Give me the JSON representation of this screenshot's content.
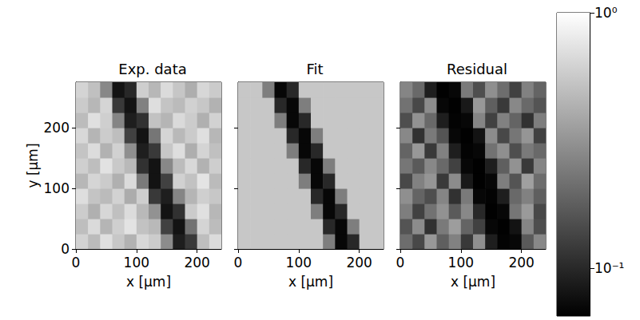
{
  "chart_data": [
    {
      "type": "heatmap",
      "title": "Exp. data",
      "x_label": "x [µm]",
      "y_label": "y [µm]",
      "xlim": [
        0,
        240
      ],
      "ylim": [
        0,
        275
      ],
      "xticks": [
        0,
        100,
        200
      ],
      "yticks": [
        0,
        100,
        200
      ],
      "x": [
        10,
        30,
        50,
        70,
        90,
        110,
        130,
        150,
        170,
        190,
        210,
        230
      ],
      "y": [
        12.5,
        37.5,
        62.5,
        87.5,
        112.5,
        137.5,
        162.5,
        187.5,
        212.5,
        237.5,
        262.5
      ],
      "cells": [
        [
          0.62,
          0.48,
          0.71,
          0.55,
          0.44,
          0.66,
          0.58,
          0.29,
          0.09,
          0.12,
          0.5,
          0.68
        ],
        [
          0.5,
          0.67,
          0.45,
          0.6,
          0.74,
          0.52,
          0.47,
          0.13,
          0.08,
          0.22,
          0.63,
          0.49
        ],
        [
          0.58,
          0.43,
          0.65,
          0.51,
          0.69,
          0.47,
          0.31,
          0.08,
          0.11,
          0.57,
          0.72,
          0.46
        ],
        [
          0.7,
          0.53,
          0.48,
          0.62,
          0.41,
          0.59,
          0.12,
          0.09,
          0.27,
          0.45,
          0.6,
          0.55
        ],
        [
          0.46,
          0.64,
          0.57,
          0.43,
          0.68,
          0.24,
          0.08,
          0.13,
          0.61,
          0.52,
          0.75,
          0.48
        ],
        [
          0.6,
          0.5,
          0.73,
          0.56,
          0.47,
          0.11,
          0.08,
          0.28,
          0.49,
          0.66,
          0.44,
          0.59
        ],
        [
          0.53,
          0.69,
          0.44,
          0.61,
          0.3,
          0.09,
          0.12,
          0.55,
          0.7,
          0.42,
          0.63,
          0.51
        ],
        [
          0.66,
          0.45,
          0.58,
          0.5,
          0.13,
          0.08,
          0.23,
          0.64,
          0.47,
          0.57,
          0.71,
          0.46
        ],
        [
          0.49,
          0.72,
          0.6,
          0.27,
          0.09,
          0.11,
          0.52,
          0.45,
          0.67,
          0.58,
          0.43,
          0.62
        ],
        [
          0.57,
          0.46,
          0.64,
          0.12,
          0.08,
          0.26,
          0.7,
          0.53,
          0.48,
          0.61,
          0.55,
          0.44
        ],
        [
          0.63,
          0.51,
          0.28,
          0.08,
          0.1,
          0.59,
          0.46,
          0.68,
          0.54,
          0.42,
          0.65,
          0.57
        ]
      ]
    },
    {
      "type": "heatmap",
      "title": "Fit",
      "x_label": "x [µm]",
      "tick_labels": "x",
      "xlim": [
        0,
        240
      ],
      "ylim": [
        0,
        275
      ],
      "xticks": [
        0,
        100,
        200
      ],
      "yticks": [
        0,
        100,
        200
      ],
      "x": [
        10,
        30,
        50,
        70,
        90,
        110,
        130,
        150,
        170,
        190,
        210,
        230
      ],
      "y": [
        12.5,
        37.5,
        62.5,
        87.5,
        112.5,
        137.5,
        162.5,
        187.5,
        212.5,
        237.5,
        262.5
      ],
      "cells": [
        [
          0.55,
          0.55,
          0.55,
          0.55,
          0.55,
          0.55,
          0.55,
          0.25,
          0.07,
          0.1,
          0.55,
          0.55
        ],
        [
          0.55,
          0.55,
          0.55,
          0.55,
          0.55,
          0.55,
          0.55,
          0.1,
          0.07,
          0.25,
          0.55,
          0.55
        ],
        [
          0.55,
          0.55,
          0.55,
          0.55,
          0.55,
          0.55,
          0.25,
          0.07,
          0.1,
          0.55,
          0.55,
          0.55
        ],
        [
          0.55,
          0.55,
          0.55,
          0.55,
          0.55,
          0.55,
          0.1,
          0.07,
          0.25,
          0.55,
          0.55,
          0.55
        ],
        [
          0.55,
          0.55,
          0.55,
          0.55,
          0.55,
          0.25,
          0.07,
          0.1,
          0.55,
          0.55,
          0.55,
          0.55
        ],
        [
          0.55,
          0.55,
          0.55,
          0.55,
          0.55,
          0.1,
          0.07,
          0.25,
          0.55,
          0.55,
          0.55,
          0.55
        ],
        [
          0.55,
          0.55,
          0.55,
          0.55,
          0.25,
          0.07,
          0.1,
          0.55,
          0.55,
          0.55,
          0.55,
          0.55
        ],
        [
          0.55,
          0.55,
          0.55,
          0.55,
          0.1,
          0.07,
          0.25,
          0.55,
          0.55,
          0.55,
          0.55,
          0.55
        ],
        [
          0.55,
          0.55,
          0.55,
          0.25,
          0.07,
          0.1,
          0.55,
          0.55,
          0.55,
          0.55,
          0.55,
          0.55
        ],
        [
          0.55,
          0.55,
          0.55,
          0.1,
          0.07,
          0.25,
          0.55,
          0.55,
          0.55,
          0.55,
          0.55,
          0.55
        ],
        [
          0.55,
          0.55,
          0.25,
          0.07,
          0.1,
          0.55,
          0.55,
          0.55,
          0.55,
          0.55,
          0.55,
          0.55
        ]
      ]
    },
    {
      "type": "heatmap",
      "title": "Residual",
      "x_label": "x [µm]",
      "tick_labels": "x",
      "xlim": [
        0,
        240
      ],
      "ylim": [
        0,
        275
      ],
      "xticks": [
        0,
        100,
        200
      ],
      "yticks": [
        0,
        100,
        200
      ],
      "x": [
        10,
        30,
        50,
        70,
        90,
        110,
        130,
        150,
        170,
        190,
        210,
        230
      ],
      "y": [
        12.5,
        37.5,
        62.5,
        87.5,
        112.5,
        137.5,
        162.5,
        187.5,
        212.5,
        237.5,
        262.5
      ],
      "cells": [
        [
          0.21,
          0.14,
          0.33,
          0.18,
          0.26,
          0.12,
          0.3,
          0.09,
          0.067,
          0.07,
          0.17,
          0.28
        ],
        [
          0.16,
          0.29,
          0.11,
          0.24,
          0.35,
          0.19,
          0.13,
          0.07,
          0.066,
          0.08,
          0.27,
          0.15
        ],
        [
          0.25,
          0.13,
          0.22,
          0.31,
          0.17,
          0.28,
          0.1,
          0.066,
          0.07,
          0.23,
          0.34,
          0.14
        ],
        [
          0.3,
          0.19,
          0.15,
          0.27,
          0.11,
          0.24,
          0.07,
          0.067,
          0.09,
          0.2,
          0.26,
          0.18
        ],
        [
          0.14,
          0.26,
          0.32,
          0.12,
          0.29,
          0.085,
          0.066,
          0.07,
          0.25,
          0.16,
          0.36,
          0.21
        ],
        [
          0.23,
          0.17,
          0.28,
          0.2,
          0.13,
          0.07,
          0.066,
          0.09,
          0.18,
          0.31,
          0.12,
          0.27
        ],
        [
          0.19,
          0.33,
          0.12,
          0.26,
          0.09,
          0.067,
          0.07,
          0.22,
          0.3,
          0.15,
          0.24,
          0.2
        ],
        [
          0.28,
          0.11,
          0.24,
          0.16,
          0.07,
          0.066,
          0.08,
          0.29,
          0.14,
          0.23,
          0.32,
          0.13
        ],
        [
          0.15,
          0.31,
          0.2,
          0.09,
          0.067,
          0.07,
          0.27,
          0.13,
          0.26,
          0.19,
          0.11,
          0.25
        ],
        [
          0.22,
          0.14,
          0.29,
          0.07,
          0.066,
          0.085,
          0.33,
          0.18,
          0.12,
          0.28,
          0.2,
          0.16
        ],
        [
          0.27,
          0.2,
          0.09,
          0.066,
          0.07,
          0.24,
          0.15,
          0.3,
          0.21,
          0.13,
          0.26,
          0.19
        ]
      ],
      "colorbar": {
        "range": [
          0.065,
          1
        ],
        "log": true,
        "ticks": [
          {
            "value": 0.1,
            "label": "10⁻¹"
          },
          {
            "value": 1,
            "label": "10⁰"
          }
        ]
      }
    }
  ]
}
